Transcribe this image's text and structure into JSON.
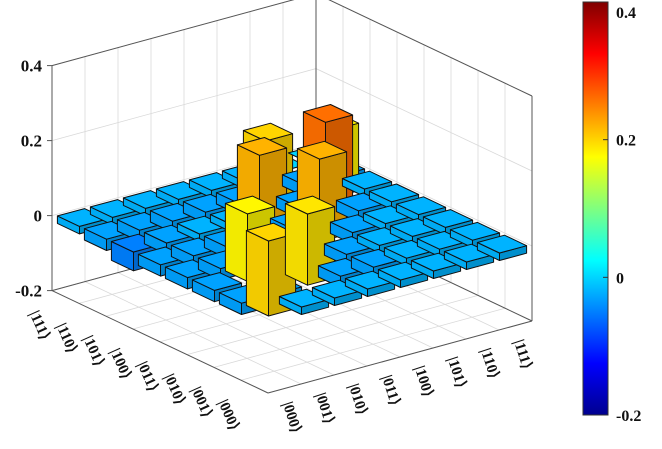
{
  "chart_data": {
    "type": "bar3d",
    "row_labels": [
      "|000⟩",
      "|001⟩",
      "|010⟩",
      "|011⟩",
      "|100⟩",
      "|101⟩",
      "|110⟩",
      "|111⟩"
    ],
    "col_labels": [
      "|000⟩",
      "|001⟩",
      "|010⟩",
      "|011⟩",
      "|100⟩",
      "|101⟩",
      "|110⟩",
      "|111⟩"
    ],
    "values": [
      [
        0.2,
        -0.02,
        -0.02,
        -0.02,
        -0.02,
        -0.02,
        -0.02,
        -0.02
      ],
      [
        -0.03,
        -0.03,
        0.19,
        -0.03,
        -0.03,
        -0.02,
        -0.02,
        -0.02
      ],
      [
        -0.03,
        0.18,
        -0.03,
        -0.03,
        -0.03,
        -0.02,
        -0.02,
        -0.02
      ],
      [
        -0.03,
        -0.03,
        -0.03,
        -0.03,
        0.22,
        -0.03,
        -0.02,
        -0.02
      ],
      [
        -0.03,
        -0.03,
        -0.03,
        0.22,
        -0.03,
        0.26,
        -0.03,
        -0.02
      ],
      [
        -0.05,
        -0.03,
        -0.02,
        -0.02,
        0.2,
        -0.03,
        0.18,
        -0.02
      ],
      [
        -0.03,
        -0.03,
        -0.03,
        -0.03,
        -0.03,
        -0.02,
        -0.03,
        -0.03
      ],
      [
        -0.02,
        -0.02,
        -0.02,
        -0.02,
        -0.02,
        -0.02,
        0.0,
        0.0
      ]
    ],
    "zlim": [
      -0.2,
      0.4
    ],
    "z_ticks": [
      "0.4",
      "0.2",
      "0",
      "-0.2"
    ],
    "colorbar": {
      "min": -0.2,
      "max": 0.4,
      "colormap": "jet",
      "ticks": [
        "0.4",
        "0.2",
        "0",
        "-0.2"
      ]
    },
    "grid": true,
    "colorbar_position": "right"
  }
}
